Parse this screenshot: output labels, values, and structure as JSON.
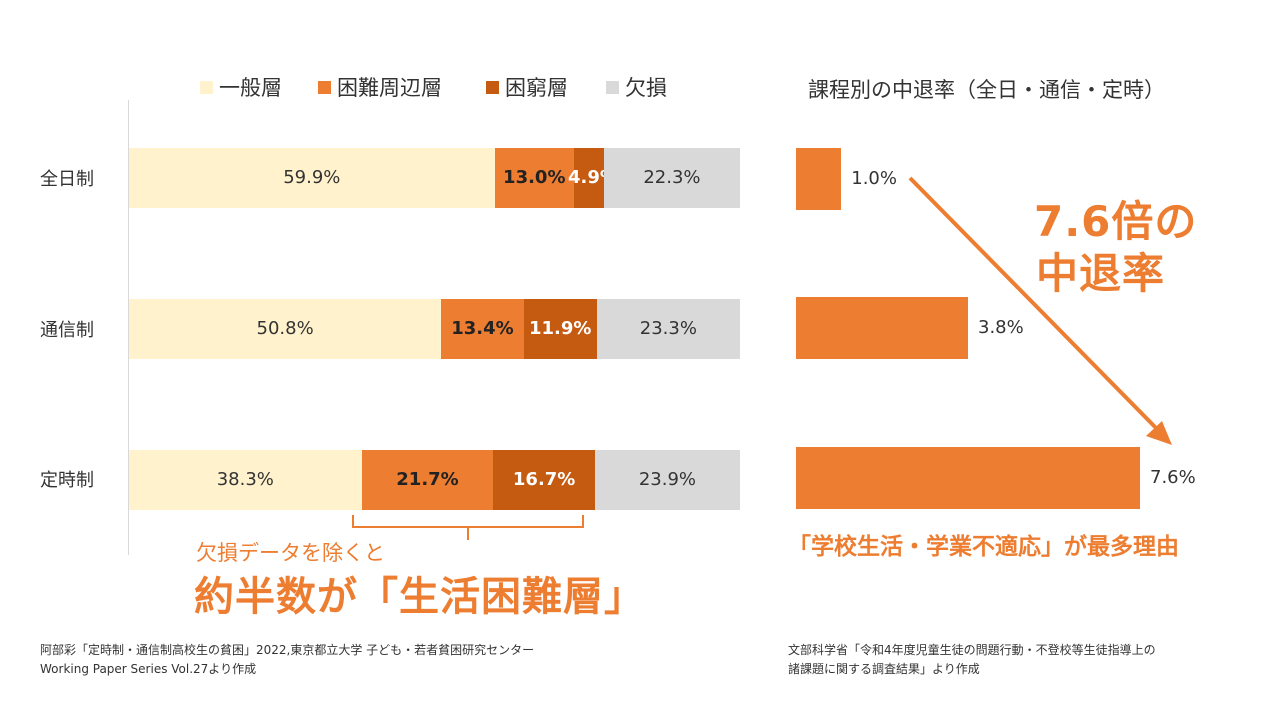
{
  "chart_data": [
    {
      "type": "bar",
      "orientation": "horizontal",
      "stacked": true,
      "categories": [
        "全日制",
        "通信制",
        "定時制"
      ],
      "series": [
        {
          "name": "一般層",
          "color": "#fff2cc",
          "values": [
            59.9,
            50.8,
            38.3
          ],
          "labels": [
            "59.9%",
            "50.8%",
            "38.3%"
          ]
        },
        {
          "name": "困難周辺層",
          "color": "#ed7d31",
          "values": [
            13.0,
            13.4,
            21.7
          ],
          "labels": [
            "13.0%",
            "13.4%",
            "21.7%"
          ]
        },
        {
          "name": "困窮層",
          "color": "#c55a11",
          "values": [
            4.9,
            11.9,
            16.7
          ],
          "labels": [
            "4.9%",
            "11.9%",
            "16.7%"
          ]
        },
        {
          "name": "欠損",
          "color": "#d9d9d9",
          "values": [
            22.3,
            23.3,
            23.9
          ],
          "labels": [
            "22.3%",
            "23.3%",
            "23.9%"
          ]
        }
      ],
      "xlim": [
        0,
        100
      ],
      "legend": "top"
    },
    {
      "type": "bar",
      "orientation": "horizontal",
      "title": "課程別の中退率（全日・通信・定時）",
      "categories": [
        "全日制",
        "通信制",
        "定時制"
      ],
      "values": [
        1.0,
        3.8,
        7.6
      ],
      "labels": [
        "1.0%",
        "3.8%",
        "7.6%"
      ],
      "color": "#ed7d31",
      "xlim": [
        0,
        8
      ]
    }
  ],
  "annotations": {
    "ratio_line1": "7.6倍の",
    "ratio_line2": "中退率",
    "bracket_note": "欠損データを除くと",
    "headline": "約半数が「生活困難層」",
    "reason": "「学校生活・学業不適応」が最多理由"
  },
  "sources": {
    "left_line1": "阿部彩「定時制・通信制高校生の貧困」2022,東京都立大学 子ども・若者貧困研究センター",
    "left_line2": "Working Paper Series Vol.27より作成",
    "right_line1": "文部科学省「令和4年度児童生徒の問題行動・不登校等生徒指導上の",
    "right_line2": "諸課題に関する調査結果」より作成"
  }
}
